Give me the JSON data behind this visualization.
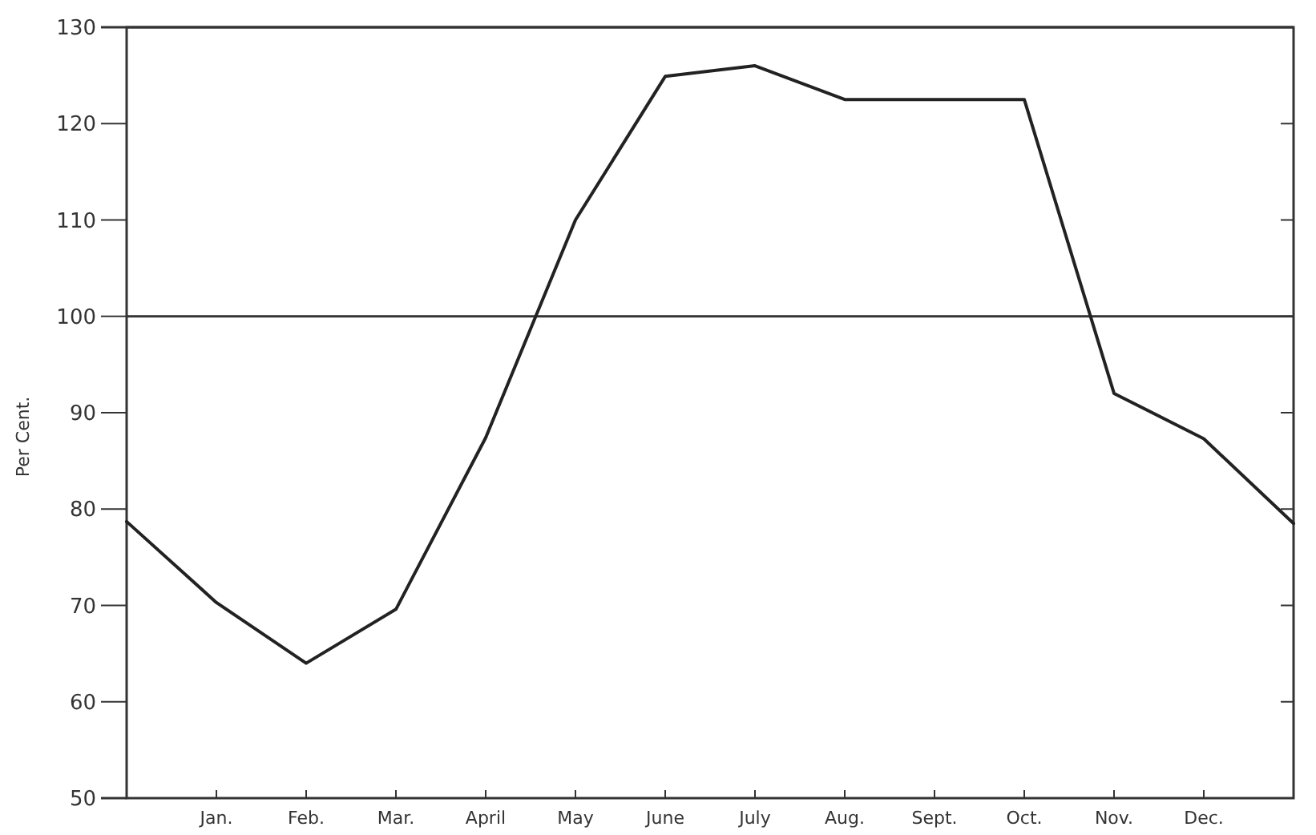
{
  "chart_data": {
    "type": "line",
    "ylabel": "Per Cent.",
    "categories": [
      null,
      "Jan.",
      "Feb.",
      "Mar.",
      "April",
      "May",
      "June",
      "July",
      "Aug.",
      "Sept.",
      "Oct.",
      "Nov.",
      "Dec.",
      null
    ],
    "ylim": [
      50,
      130
    ],
    "yticks": [
      50,
      60,
      70,
      80,
      90,
      100,
      110,
      120,
      130
    ],
    "series": [
      {
        "color": "#222222",
        "values": [
          78.7,
          70.3,
          64,
          69.6,
          87.4,
          110,
          124.9,
          126,
          122.5,
          122.5,
          122.5,
          92,
          87.3,
          78.5
        ]
      }
    ],
    "ref_lines": [
      {
        "axis": "y",
        "value": 100,
        "color": "#333333"
      }
    ],
    "grid": false,
    "marker": "none",
    "line_style": "solid"
  }
}
